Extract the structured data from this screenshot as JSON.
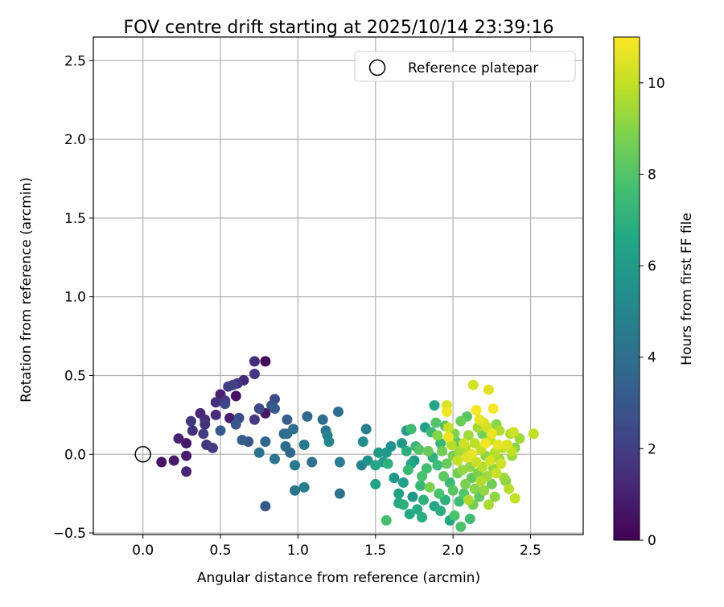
{
  "chart_data": {
    "type": "scatter",
    "title": "FOV centre drift starting at 2025/10/14 23:39:16",
    "xlabel": "Angular distance from reference (arcmin)",
    "ylabel": "Rotation from reference (arcmin)",
    "xlim": [
      -0.32,
      2.84
    ],
    "ylim": [
      -0.51,
      2.65
    ],
    "xticks": [
      0.0,
      0.5,
      1.0,
      1.5,
      2.0,
      2.5
    ],
    "xtick_labels": [
      "0.0",
      "0.5",
      "1.0",
      "1.5",
      "2.0",
      "2.5"
    ],
    "yticks": [
      -0.5,
      0.0,
      0.5,
      1.0,
      1.5,
      2.0,
      2.5
    ],
    "ytick_labels": [
      "−0.5",
      "0.0",
      "0.5",
      "1.0",
      "1.5",
      "2.0",
      "2.5"
    ],
    "grid": true,
    "legend": {
      "position": "top-right",
      "entries": [
        "Reference platepar"
      ]
    },
    "reference_point": {
      "x": 0.0,
      "y": 0.0,
      "label": "Reference platepar"
    },
    "colorbar": {
      "label": "Hours from first FF file",
      "colormap": "viridis",
      "range": [
        0,
        11
      ],
      "ticks": [
        0,
        2,
        4,
        6,
        8,
        10
      ],
      "tick_labels": [
        "0",
        "2",
        "4",
        "6",
        "8",
        "10"
      ]
    },
    "points": [
      [
        0.12,
        -0.05,
        0.6
      ],
      [
        0.2,
        -0.04,
        0.8
      ],
      [
        0.28,
        -0.01,
        0.9
      ],
      [
        0.28,
        -0.11,
        1.1
      ],
      [
        0.23,
        0.1,
        1.0
      ],
      [
        0.28,
        0.07,
        0.7
      ],
      [
        0.32,
        0.15,
        1.5
      ],
      [
        0.37,
        0.26,
        1.2
      ],
      [
        0.4,
        0.22,
        1.4
      ],
      [
        0.4,
        0.19,
        1.6
      ],
      [
        0.31,
        0.21,
        1.7
      ],
      [
        0.39,
        0.13,
        2.0
      ],
      [
        0.41,
        0.06,
        1.8
      ],
      [
        0.45,
        0.04,
        1.9
      ],
      [
        0.47,
        0.25,
        1.3
      ],
      [
        0.47,
        0.33,
        1.5
      ],
      [
        0.5,
        0.38,
        1.0
      ],
      [
        0.53,
        0.34,
        1.8
      ],
      [
        0.55,
        0.43,
        2.0
      ],
      [
        0.53,
        0.32,
        2.2
      ],
      [
        0.56,
        0.23,
        0.9
      ],
      [
        0.6,
        0.37,
        0.5
      ],
      [
        0.61,
        0.45,
        1.6
      ],
      [
        0.58,
        0.44,
        2.1
      ],
      [
        0.62,
        0.23,
        2.6
      ],
      [
        0.65,
        0.47,
        1.2
      ],
      [
        0.6,
        0.19,
        2.9
      ],
      [
        0.5,
        0.15,
        3.1
      ],
      [
        0.64,
        0.09,
        3.3
      ],
      [
        0.68,
        0.08,
        3.0
      ],
      [
        0.72,
        0.22,
        1.8
      ],
      [
        0.72,
        0.51,
        1.7
      ],
      [
        0.72,
        0.59,
        1.4
      ],
      [
        0.79,
        0.59,
        0.2
      ],
      [
        0.79,
        0.26,
        0.7
      ],
      [
        0.75,
        0.29,
        2.4
      ],
      [
        0.75,
        0.01,
        4.1
      ],
      [
        0.79,
        0.08,
        3.5
      ],
      [
        0.83,
        0.31,
        2.8
      ],
      [
        0.85,
        0.35,
        2.5
      ],
      [
        0.85,
        0.29,
        3.2
      ],
      [
        0.79,
        -0.33,
        3.0
      ],
      [
        0.85,
        -0.03,
        4.3
      ],
      [
        0.91,
        0.13,
        3.8
      ],
      [
        0.93,
        0.22,
        3.2
      ],
      [
        0.92,
        0.05,
        3.9
      ],
      [
        0.93,
        0.13,
        4.0
      ],
      [
        0.95,
        0.01,
        3.7
      ],
      [
        0.97,
        0.16,
        4.0
      ],
      [
        0.98,
        -0.07,
        4.5
      ],
      [
        0.98,
        -0.23,
        4.2
      ],
      [
        1.04,
        0.06,
        4.4
      ],
      [
        1.04,
        -0.21,
        4.6
      ],
      [
        1.06,
        0.24,
        3.7
      ],
      [
        1.09,
        -0.05,
        4.1
      ],
      [
        1.16,
        0.22,
        3.9
      ],
      [
        1.18,
        0.15,
        4.2
      ],
      [
        1.19,
        0.12,
        4.7
      ],
      [
        1.2,
        0.08,
        5.0
      ],
      [
        1.26,
        0.27,
        4.0
      ],
      [
        1.27,
        -0.05,
        4.6
      ],
      [
        1.27,
        -0.25,
        4.2
      ],
      [
        1.41,
        -0.07,
        4.9
      ],
      [
        1.42,
        0.08,
        5.3
      ],
      [
        1.44,
        0.16,
        4.8
      ],
      [
        1.45,
        -0.04,
        5.5
      ],
      [
        1.5,
        -0.19,
        6.3
      ],
      [
        1.5,
        -0.07,
        6.5
      ],
      [
        1.52,
        0.01,
        6.0
      ],
      [
        1.55,
        -0.05,
        6.0
      ],
      [
        1.57,
        0.01,
        5.8
      ],
      [
        1.57,
        -0.42,
        7.7
      ],
      [
        1.58,
        -0.06,
        7.0
      ],
      [
        1.6,
        0.05,
        5.5
      ],
      [
        1.62,
        -0.15,
        5.9
      ],
      [
        1.65,
        -0.25,
        6.2
      ],
      [
        1.65,
        -0.31,
        6.5
      ],
      [
        1.67,
        0.07,
        5.8
      ],
      [
        1.68,
        -0.18,
        6.1
      ],
      [
        1.68,
        -0.32,
        7.0
      ],
      [
        1.7,
        0.15,
        6.0
      ],
      [
        1.7,
        0.02,
        6.9
      ],
      [
        1.71,
        -0.1,
        7.3
      ],
      [
        1.72,
        -0.38,
        6.6
      ],
      [
        1.73,
        0.16,
        7.5
      ],
      [
        1.73,
        -0.06,
        6.4
      ],
      [
        1.74,
        -0.27,
        5.8
      ],
      [
        1.75,
        -0.04,
        6.0
      ],
      [
        1.76,
        0.05,
        7.2
      ],
      [
        1.77,
        -0.35,
        6.7
      ],
      [
        1.78,
        0.03,
        8.0
      ],
      [
        1.79,
        -0.2,
        7.3
      ],
      [
        1.8,
        -0.14,
        7.8
      ],
      [
        1.8,
        -0.4,
        6.8
      ],
      [
        1.81,
        -0.29,
        7.1
      ],
      [
        1.82,
        0.17,
        6.2
      ],
      [
        1.83,
        -0.09,
        7.6
      ],
      [
        1.84,
        0.02,
        8.4
      ],
      [
        1.85,
        -0.21,
        8.8
      ],
      [
        1.86,
        0.14,
        7.4
      ],
      [
        1.87,
        -0.02,
        7.0
      ],
      [
        1.88,
        0.31,
        6.5
      ],
      [
        1.88,
        -0.33,
        6.5
      ],
      [
        1.89,
        0.2,
        8.0
      ],
      [
        1.9,
        0.12,
        9.0
      ],
      [
        1.9,
        -0.07,
        7.5
      ],
      [
        1.91,
        -0.25,
        7.8
      ],
      [
        1.92,
        0.07,
        7.3
      ],
      [
        1.92,
        -0.36,
        6.9
      ],
      [
        1.93,
        0.02,
        8.6
      ],
      [
        1.94,
        -0.14,
        8.2
      ],
      [
        1.95,
        0.18,
        7.9
      ],
      [
        1.95,
        -0.29,
        7.0
      ],
      [
        1.96,
        0.31,
        10.4
      ],
      [
        1.96,
        0.27,
        10.8
      ],
      [
        1.96,
        -0.06,
        8.4
      ],
      [
        1.97,
        0.17,
        10.1
      ],
      [
        1.97,
        0.11,
        10.7
      ],
      [
        1.98,
        -0.18,
        7.4
      ],
      [
        1.98,
        -0.42,
        6.6
      ],
      [
        1.99,
        0.06,
        9.8
      ],
      [
        2.0,
        -0.01,
        8.7
      ],
      [
        2.0,
        -0.23,
        8.1
      ],
      [
        2.01,
        0.13,
        8.9
      ],
      [
        2.01,
        -0.39,
        7.8
      ],
      [
        2.02,
        0.08,
        8.3
      ],
      [
        2.03,
        -0.12,
        8.6
      ],
      [
        2.03,
        -0.04,
        10.0
      ],
      [
        2.04,
        0.02,
        9.5
      ],
      [
        2.04,
        -0.3,
        7.5
      ],
      [
        2.05,
        0.21,
        8.5
      ],
      [
        2.05,
        -0.46,
        7.9
      ],
      [
        2.06,
        -0.1,
        9.2
      ],
      [
        2.07,
        0.07,
        10.2
      ],
      [
        2.07,
        -0.25,
        8.0
      ],
      [
        2.08,
        0.04,
        9.7
      ],
      [
        2.08,
        -0.19,
        8.8
      ],
      [
        2.09,
        0.24,
        8.1
      ],
      [
        2.09,
        -0.02,
        10.5
      ],
      [
        2.1,
        -0.29,
        9.6
      ],
      [
        2.1,
        0.12,
        9.4
      ],
      [
        2.11,
        -0.08,
        9.1
      ],
      [
        2.11,
        -0.41,
        7.6
      ],
      [
        2.12,
        0.0,
        10.6
      ],
      [
        2.12,
        -0.15,
        8.3
      ],
      [
        2.13,
        0.44,
        10.3
      ],
      [
        2.13,
        -0.32,
        8.7
      ],
      [
        2.14,
        0.07,
        9.9
      ],
      [
        2.14,
        -0.22,
        9.0
      ],
      [
        2.15,
        0.28,
        10.9
      ],
      [
        2.15,
        -0.05,
        10.1
      ],
      [
        2.16,
        0.17,
        9.5
      ],
      [
        2.16,
        -0.12,
        8.9
      ],
      [
        2.17,
        0.22,
        10.6
      ],
      [
        2.17,
        -0.27,
        8.2
      ],
      [
        2.18,
        0.03,
        10.0
      ],
      [
        2.18,
        -0.17,
        9.7
      ],
      [
        2.19,
        0.13,
        8.7
      ],
      [
        2.19,
        -0.08,
        9.8
      ],
      [
        2.2,
        0.2,
        10.4
      ],
      [
        2.2,
        -0.23,
        9.2
      ],
      [
        2.21,
        0.07,
        10.8
      ],
      [
        2.21,
        -0.01,
        9.1
      ],
      [
        2.22,
        0.17,
        10.2
      ],
      [
        2.22,
        -0.14,
        9.4
      ],
      [
        2.23,
        0.41,
        10.5
      ],
      [
        2.23,
        -0.32,
        9.6
      ],
      [
        2.24,
        0.09,
        9.9
      ],
      [
        2.24,
        -0.04,
        10.3
      ],
      [
        2.25,
        0.13,
        10.7
      ],
      [
        2.25,
        -0.19,
        8.6
      ],
      [
        2.26,
        0.29,
        10.9
      ],
      [
        2.26,
        -0.09,
        9.3
      ],
      [
        2.27,
        0.01,
        9.8
      ],
      [
        2.27,
        -0.27,
        9.1
      ],
      [
        2.28,
        0.19,
        9.0
      ],
      [
        2.28,
        -0.12,
        10.1
      ],
      [
        2.29,
        0.06,
        10.6
      ],
      [
        2.3,
        -0.03,
        9.5
      ],
      [
        2.3,
        0.15,
        9.7
      ],
      [
        2.31,
        -0.06,
        10.2
      ],
      [
        2.32,
        0.04,
        9.9
      ],
      [
        2.33,
        -0.15,
        9.3
      ],
      [
        2.34,
        -0.17,
        8.9
      ],
      [
        2.35,
        0.06,
        10.4
      ],
      [
        2.36,
        -0.22,
        9.8
      ],
      [
        2.37,
        0.13,
        9.6
      ],
      [
        2.38,
        0.02,
        10.0
      ],
      [
        2.38,
        -0.01,
        9.3
      ],
      [
        2.39,
        0.14,
        10.2
      ],
      [
        2.4,
        0.04,
        9.0
      ],
      [
        2.4,
        -0.28,
        10.0
      ],
      [
        2.43,
        0.1,
        9.4
      ],
      [
        2.52,
        0.13,
        9.9
      ]
    ]
  }
}
